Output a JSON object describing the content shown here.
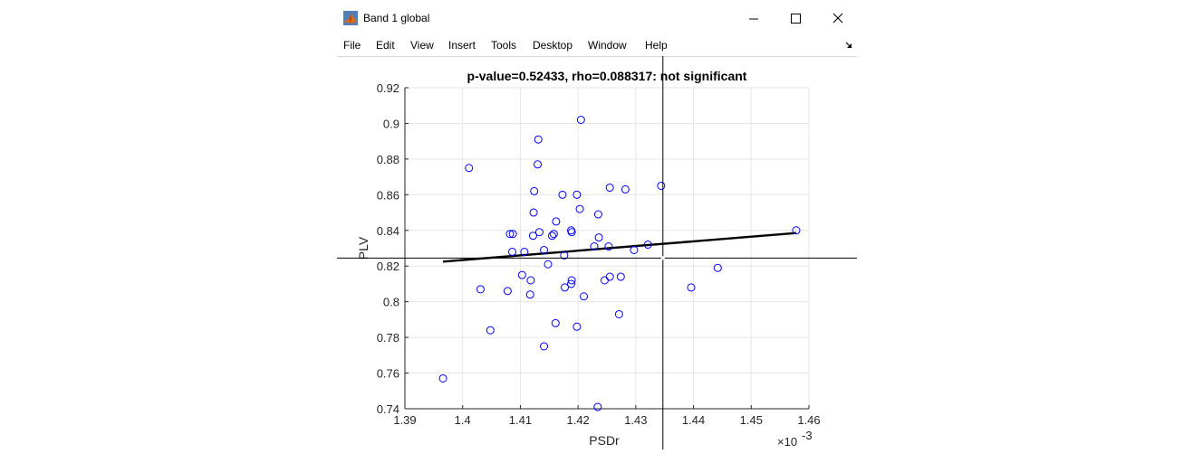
{
  "window": {
    "title": "Band 1 global",
    "menu": [
      "File",
      "Edit",
      "View",
      "Insert",
      "Tools",
      "Desktop",
      "Window",
      "Help"
    ]
  },
  "colors": {
    "marker": "#0000ff",
    "fit_line": "#000000",
    "grid": "#e6e6e6",
    "crosshair": "#000000"
  },
  "chart_data": {
    "type": "scatter",
    "title": "p-value=0.52433, rho=0.088317: not significant",
    "xlabel": "PSDr",
    "ylabel": "PLV",
    "x_exponent_label": "×10",
    "x_exponent_power": "-3",
    "xlim": [
      1.39,
      1.46
    ],
    "ylim": [
      0.74,
      0.92
    ],
    "x_ticks": [
      1.39,
      1.4,
      1.41,
      1.42,
      1.43,
      1.44,
      1.45,
      1.46
    ],
    "x_tick_labels": [
      "1.39",
      "1.4",
      "1.41",
      "1.42",
      "1.43",
      "1.44",
      "1.45",
      "1.46"
    ],
    "y_ticks": [
      0.74,
      0.76,
      0.78,
      0.8,
      0.82,
      0.84,
      0.86,
      0.88,
      0.9,
      0.92
    ],
    "y_tick_labels": [
      "0.74",
      "0.76",
      "0.78",
      "0.8",
      "0.82",
      "0.84",
      "0.86",
      "0.88",
      "0.9",
      "0.92"
    ],
    "grid": true,
    "points": {
      "x": [
        1.4205,
        1.4131,
        1.4011,
        1.413,
        1.4124,
        1.4173,
        1.4198,
        1.4255,
        1.4282,
        1.4344,
        1.4203,
        1.4123,
        1.4235,
        1.4162,
        1.4188,
        1.4189,
        1.4087,
        1.4082,
        1.4122,
        1.4133,
        1.4155,
        1.4158,
        1.4236,
        1.4228,
        1.4253,
        1.4297,
        1.4321,
        1.4141,
        1.4086,
        1.4107,
        1.4176,
        1.4148,
        1.4578,
        1.4103,
        1.4118,
        1.4189,
        1.4188,
        1.4246,
        1.4255,
        1.4274,
        1.4442,
        1.4177,
        1.4031,
        1.4078,
        1.4117,
        1.421,
        1.4396,
        1.4271,
        1.4048,
        1.4161,
        1.4198,
        1.4141,
        1.3966,
        1.4234
      ],
      "y": [
        0.902,
        0.891,
        0.875,
        0.877,
        0.862,
        0.86,
        0.86,
        0.864,
        0.863,
        0.865,
        0.852,
        0.85,
        0.849,
        0.845,
        0.84,
        0.839,
        0.838,
        0.838,
        0.837,
        0.839,
        0.837,
        0.838,
        0.836,
        0.831,
        0.831,
        0.829,
        0.832,
        0.829,
        0.828,
        0.828,
        0.826,
        0.821,
        0.84,
        0.815,
        0.812,
        0.812,
        0.81,
        0.812,
        0.814,
        0.814,
        0.819,
        0.808,
        0.807,
        0.806,
        0.804,
        0.803,
        0.808,
        0.793,
        0.784,
        0.788,
        0.786,
        0.775,
        0.757,
        0.741
      ]
    },
    "fit_line": {
      "x": [
        1.3966,
        1.4578
      ],
      "y": [
        0.8225,
        0.8385
      ]
    },
    "crosshair": {
      "x": 1.4347,
      "y": 0.8245
    }
  }
}
